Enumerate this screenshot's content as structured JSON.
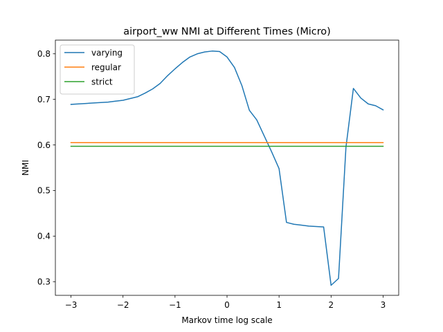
{
  "chart_data": {
    "type": "line",
    "title": "airport_ww NMI at Different Times (Micro)",
    "xlabel": "Markov time log scale",
    "ylabel": "NMI",
    "xlim": [
      -3.3,
      3.3
    ],
    "ylim": [
      0.27,
      0.83
    ],
    "xticks": [
      -3,
      -2,
      -1,
      0,
      1,
      2,
      3
    ],
    "xtick_labels": [
      "−3",
      "−2",
      "−1",
      "0",
      "1",
      "2",
      "3"
    ],
    "yticks": [
      0.3,
      0.4,
      0.5,
      0.6,
      0.7,
      0.8
    ],
    "ytick_labels": [
      "0.3",
      "0.4",
      "0.5",
      "0.6",
      "0.7",
      "0.8"
    ],
    "grid": false,
    "legend_position": "top-left",
    "series": [
      {
        "name": "varying",
        "color": "#1f77b4",
        "x": [
          -3.0,
          -2.857,
          -2.714,
          -2.571,
          -2.429,
          -2.286,
          -2.143,
          -2.0,
          -1.857,
          -1.714,
          -1.571,
          -1.429,
          -1.286,
          -1.143,
          -1.0,
          -0.857,
          -0.714,
          -0.571,
          -0.429,
          -0.286,
          -0.143,
          0.0,
          0.143,
          0.286,
          0.429,
          0.571,
          0.714,
          0.857,
          1.0,
          1.143,
          1.286,
          1.429,
          1.571,
          1.714,
          1.857,
          2.0,
          2.143,
          2.286,
          2.429,
          2.571,
          2.714,
          2.857,
          3.0
        ],
        "values": [
          0.689,
          0.69,
          0.691,
          0.692,
          0.693,
          0.694,
          0.696,
          0.698,
          0.702,
          0.706,
          0.714,
          0.723,
          0.735,
          0.752,
          0.767,
          0.781,
          0.793,
          0.8,
          0.804,
          0.806,
          0.805,
          0.793,
          0.77,
          0.73,
          0.676,
          0.655,
          0.62,
          0.585,
          0.548,
          0.43,
          0.426,
          0.424,
          0.422,
          0.421,
          0.42,
          0.292,
          0.307,
          0.595,
          0.724,
          0.703,
          0.69,
          0.686,
          0.677
        ],
        "_note_skip": true
      },
      {
        "name": "regular",
        "color": "#ff7f0e",
        "x": [
          -3.0,
          3.0
        ],
        "values": [
          0.605,
          0.605
        ]
      },
      {
        "name": "strict",
        "color": "#2ca02c",
        "x": [
          -3.0,
          3.0
        ],
        "values": [
          0.597,
          0.597
        ]
      }
    ]
  }
}
